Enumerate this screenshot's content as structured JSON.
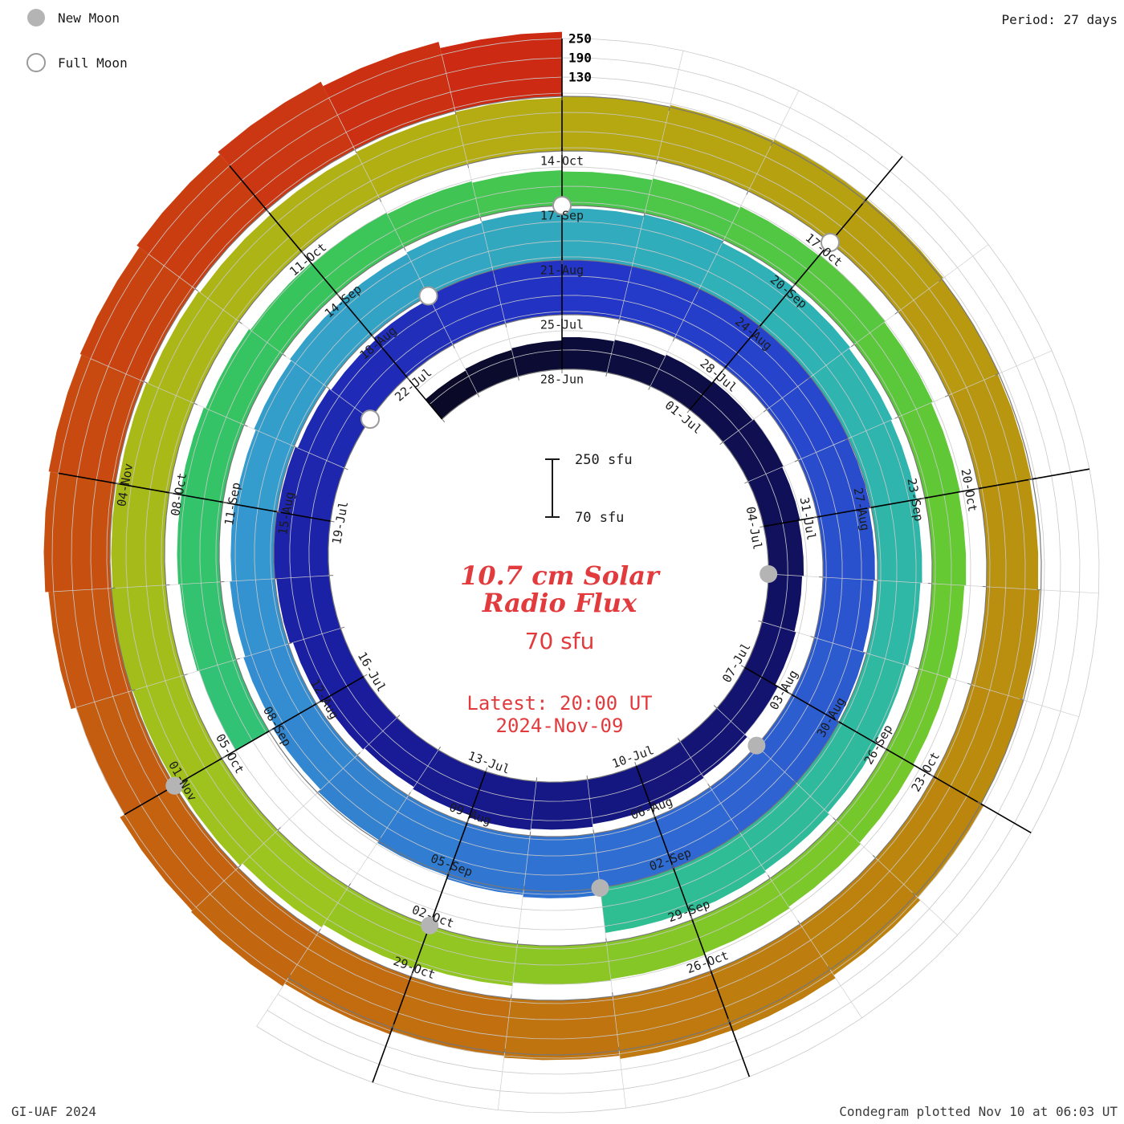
{
  "header": {
    "legend": {
      "new_moon_label": "New Moon",
      "full_moon_label": "Full Moon"
    },
    "period_label": "Period: 27 days"
  },
  "footer": {
    "credit": "GI-UAF 2024",
    "plotted": "Condegram plotted Nov 10 at 06:03 UT"
  },
  "center": {
    "title_line1": "10.7 cm Solar",
    "title_line2": "Radio Flux",
    "baseline_label": "70 sfu",
    "latest_line1": "Latest: 20:00 UT",
    "latest_line2": "2024-Nov-09",
    "scalebar": {
      "top_label": "250 sfu",
      "bottom_label": "70 sfu"
    }
  },
  "radial_axis": {
    "tick_labels": [
      "130",
      "190",
      "250"
    ]
  },
  "chart_data": {
    "type": "bar",
    "variant": "condegram-spiral",
    "title": "10.7 cm Solar Radio Flux",
    "units": "sfu",
    "baseline_sfu": 70,
    "gridlines_sfu": [
      130,
      190,
      250
    ],
    "period_days": 27,
    "start_date": "2024-06-25",
    "end_date": "2024-11-09",
    "angle_origin_date": "2024-06-28",
    "daily_flux": [
      150,
      155,
      160,
      170,
      175,
      180,
      185,
      190,
      185,
      180,
      175,
      180,
      190,
      200,
      205,
      210,
      218,
      222,
      215,
      208,
      214,
      225,
      235,
      242,
      236,
      228,
      222,
      230,
      242,
      252,
      258,
      262,
      255,
      248,
      242,
      238,
      232,
      228,
      234,
      240,
      246,
      252,
      258,
      262,
      256,
      246,
      236,
      226,
      216,
      210,
      204,
      200,
      206,
      212,
      216,
      221,
      226,
      231,
      236,
      230,
      224,
      219,
      214,
      209,
      204,
      199,
      205,
      211,
      216,
      211,
      null,
      null,
      null,
      null,
      null,
      190,
      196,
      201,
      206,
      200,
      195,
      190,
      185,
      180,
      176,
      181,
      186,
      191,
      186,
      181,
      176,
      171,
      166,
      171,
      176,
      181,
      186,
      191,
      201,
      211,
      221,
      231,
      236,
      241,
      236,
      231,
      226,
      221,
      226,
      231,
      236,
      241,
      246,
      251,
      246,
      241,
      236,
      231,
      236,
      241,
      251,
      261,
      271,
      266,
      256,
      251,
      261,
      271,
      266,
      251,
      266,
      276,
      281,
      286,
      296,
      306,
      291,
      271
    ],
    "label_step_days": 3,
    "labels": [
      "28-Jun",
      "01-Jul",
      "04-Jul",
      "07-Jul",
      "10-Jul",
      "13-Jul",
      "16-Jul",
      "19-Jul",
      "22-Jul",
      "25-Jul",
      "28-Jul",
      "31-Jul",
      "03-Aug",
      "06-Aug",
      "09-Aug",
      "12-Aug",
      "15-Aug",
      "18-Aug",
      "21-Aug",
      "24-Aug",
      "27-Aug",
      "30-Aug",
      "02-Sep",
      "05-Sep",
      "08-Sep",
      "11-Sep",
      "14-Sep",
      "17-Sep",
      "20-Sep",
      "23-Sep",
      "26-Sep",
      "29-Sep",
      "02-Oct",
      "05-Oct",
      "08-Oct",
      "11-Oct",
      "14-Oct",
      "17-Oct",
      "20-Oct",
      "23-Oct",
      "26-Oct",
      "29-Oct",
      "01-Nov",
      "04-Nov"
    ],
    "new_moons": [
      "2024-07-05",
      "2024-08-04",
      "2024-09-03",
      "2024-10-02",
      "2024-11-01"
    ],
    "full_moons": [
      "2024-07-21",
      "2024-08-19",
      "2024-09-17",
      "2024-10-17"
    ],
    "colormap": [
      {
        "t": 0.0,
        "c": "#0a0a28"
      },
      {
        "t": 0.08,
        "c": "#12126a"
      },
      {
        "t": 0.15,
        "c": "#1a1d9e"
      },
      {
        "t": 0.22,
        "c": "#2336c8"
      },
      {
        "t": 0.3,
        "c": "#2f68d2"
      },
      {
        "t": 0.37,
        "c": "#359bcf"
      },
      {
        "t": 0.44,
        "c": "#2fb3b3"
      },
      {
        "t": 0.51,
        "c": "#2fbf8f"
      },
      {
        "t": 0.58,
        "c": "#35c45f"
      },
      {
        "t": 0.66,
        "c": "#66c931"
      },
      {
        "t": 0.73,
        "c": "#9cc51f"
      },
      {
        "t": 0.8,
        "c": "#b4ad12"
      },
      {
        "t": 0.87,
        "c": "#bb8a0e"
      },
      {
        "t": 0.94,
        "c": "#c55e10"
      },
      {
        "t": 1.0,
        "c": "#cc2a12"
      }
    ],
    "colors": {
      "title_red": "#e23b3e",
      "moon_gray": "#b4b4b4",
      "moon_ring_gray": "#9a9a9a",
      "grid_gray": "#c9c9c9",
      "baseline_gray": "#777777"
    }
  }
}
